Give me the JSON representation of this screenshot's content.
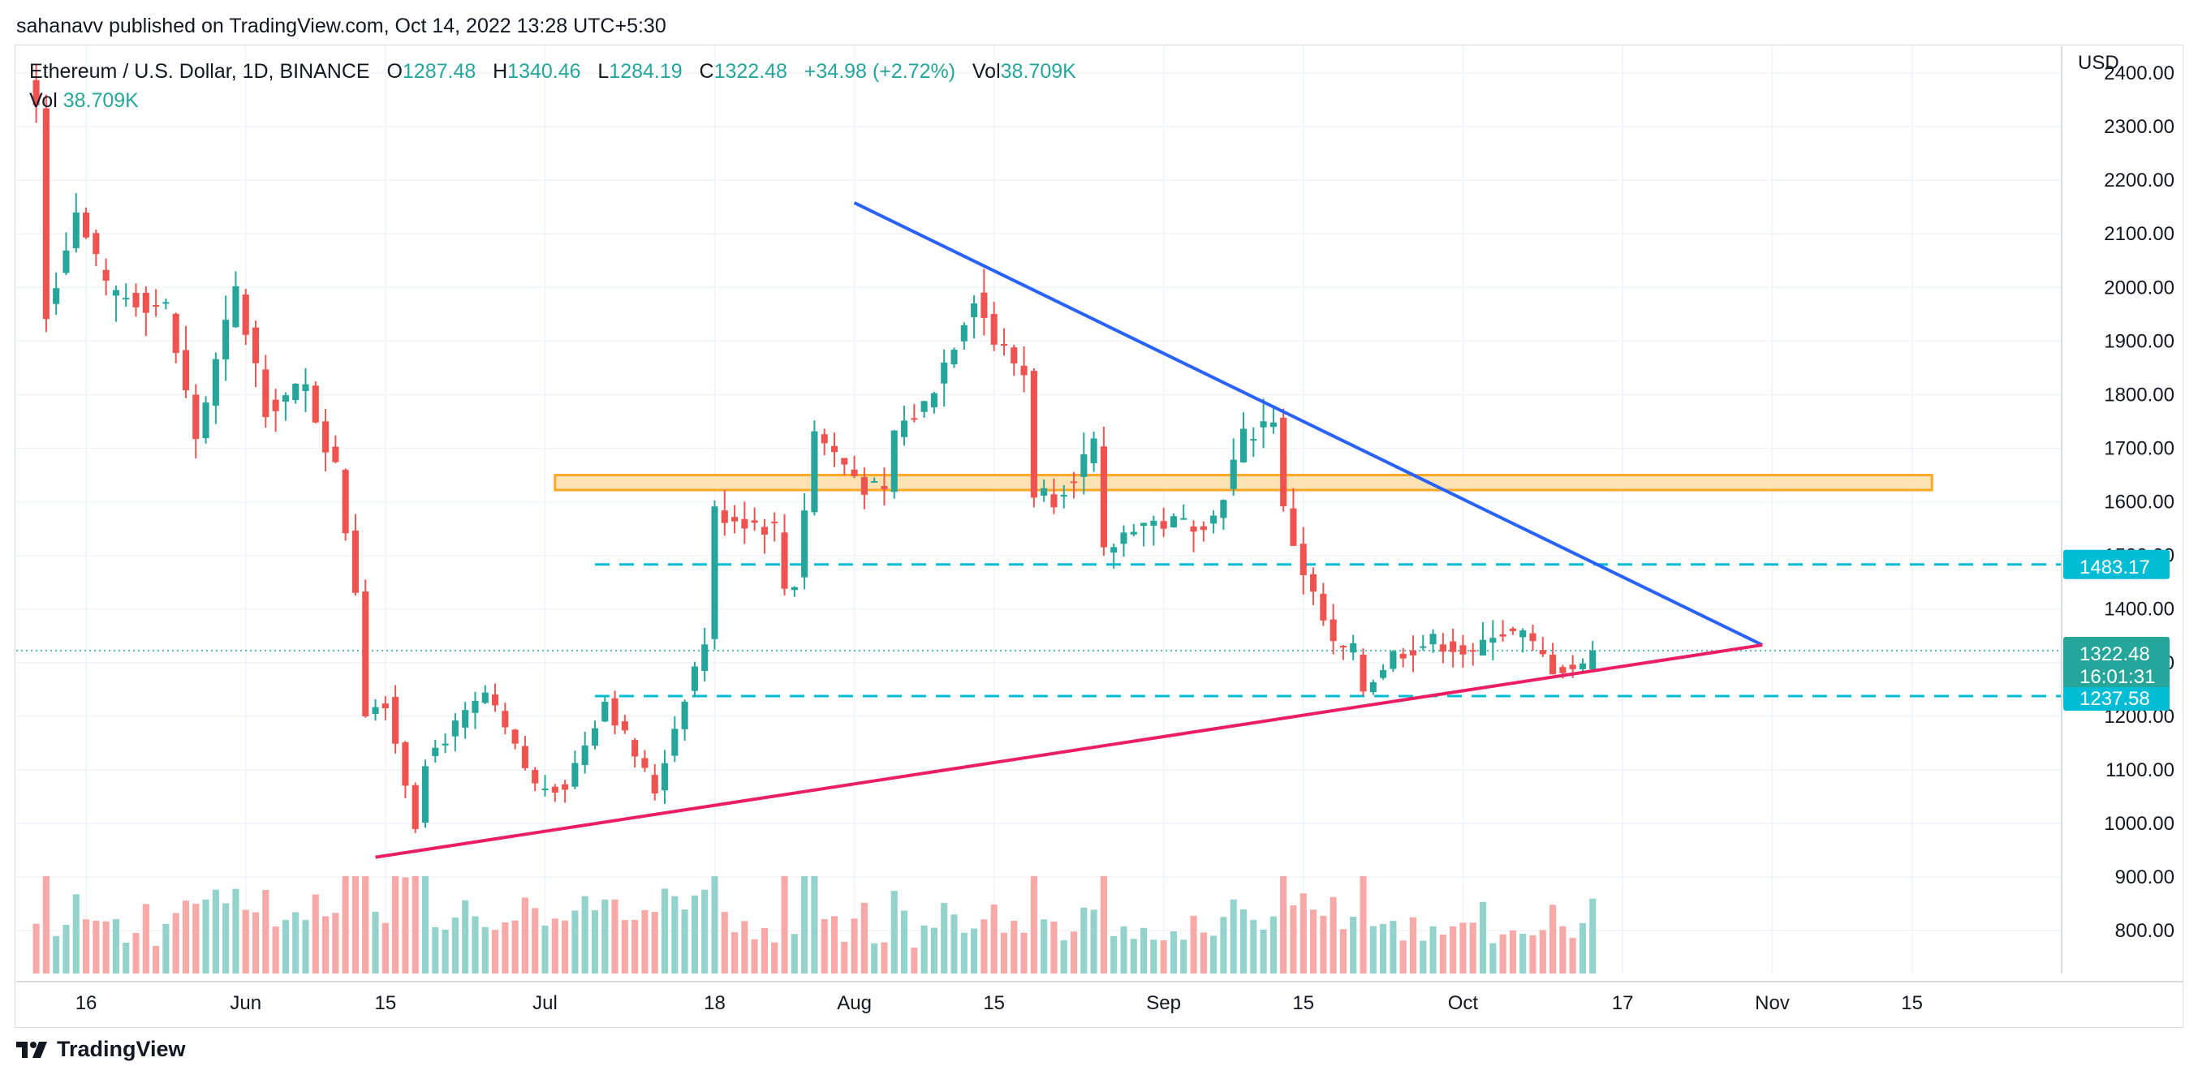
{
  "header": {
    "published_by": "sahanavv published on TradingView.com, Oct 14, 2022 13:28 UTC+5:30"
  },
  "legend": {
    "symbol": "Ethereum / U.S. Dollar, 1D, BINANCE",
    "open_label": "O",
    "open": "1287.48",
    "high_label": "H",
    "high": "1340.46",
    "low_label": "L",
    "low": "1284.19",
    "close_label": "C",
    "close": "1322.48",
    "change": "+34.98 (+2.72%)",
    "vol_label": "Vol",
    "vol": "38.709K",
    "vol2_label": "Vol",
    "vol2": "38.709K"
  },
  "footer": {
    "brand": "TradingView"
  },
  "colors": {
    "up": "#26a69a",
    "down": "#ef5350",
    "vol_up": "#93d3cc",
    "vol_down": "#f7a9a7",
    "resistance_line": "#2962ff",
    "support_line": "#e91e63",
    "zone_fill": "#fde2b3",
    "zone_border": "#ffa726",
    "level_line": "#00bcd4",
    "price_badge": "#26a69a"
  },
  "chart_data": {
    "type": "candlestick",
    "currency": "USD",
    "ylim": [
      720,
      2450
    ],
    "y_ticks": [
      "800.00",
      "900.00",
      "1000.00",
      "1100.00",
      "1200.00",
      "1300.00",
      "1400.00",
      "1500.00",
      "1600.00",
      "1700.00",
      "1800.00",
      "1900.00",
      "2000.00",
      "2100.00",
      "2200.00",
      "2300.00",
      "2400.00"
    ],
    "x_range": [
      "2022-05-09",
      "2022-11-30"
    ],
    "x_ticks": [
      {
        "date": "2022-05-16",
        "label": "16"
      },
      {
        "date": "2022-06-01",
        "label": "Jun"
      },
      {
        "date": "2022-06-15",
        "label": "15"
      },
      {
        "date": "2022-07-01",
        "label": "Jul"
      },
      {
        "date": "2022-07-18",
        "label": "18"
      },
      {
        "date": "2022-08-01",
        "label": "Aug"
      },
      {
        "date": "2022-08-15",
        "label": "15"
      },
      {
        "date": "2022-09-01",
        "label": "Sep"
      },
      {
        "date": "2022-09-15",
        "label": "15"
      },
      {
        "date": "2022-10-01",
        "label": "Oct"
      },
      {
        "date": "2022-10-17",
        "label": "17"
      },
      {
        "date": "2022-11-01",
        "label": "Nov"
      },
      {
        "date": "2022-11-15",
        "label": "15"
      }
    ],
    "anchors": [
      {
        "date": "2022-05-11",
        "close": 2340
      },
      {
        "date": "2022-05-12",
        "close": 1960
      },
      {
        "date": "2022-05-13",
        "close": 2020
      },
      {
        "date": "2022-05-15",
        "close": 2140
      },
      {
        "date": "2022-05-18",
        "close": 1990
      },
      {
        "date": "2022-05-21",
        "close": 1980
      },
      {
        "date": "2022-05-24",
        "close": 1960
      },
      {
        "date": "2022-05-27",
        "close": 1720
      },
      {
        "date": "2022-05-31",
        "close": 1990
      },
      {
        "date": "2022-06-03",
        "close": 1780
      },
      {
        "date": "2022-06-07",
        "close": 1810
      },
      {
        "date": "2022-06-10",
        "close": 1660
      },
      {
        "date": "2022-06-12",
        "close": 1440
      },
      {
        "date": "2022-06-13",
        "close": 1210
      },
      {
        "date": "2022-06-15",
        "close": 1230
      },
      {
        "date": "2022-06-18",
        "close": 1000
      },
      {
        "date": "2022-06-19",
        "close": 1120
      },
      {
        "date": "2022-06-25",
        "close": 1240
      },
      {
        "date": "2022-06-30",
        "close": 1070
      },
      {
        "date": "2022-07-03",
        "close": 1070
      },
      {
        "date": "2022-07-07",
        "close": 1230
      },
      {
        "date": "2022-07-12",
        "close": 1060
      },
      {
        "date": "2022-07-15",
        "close": 1240
      },
      {
        "date": "2022-07-17",
        "close": 1340
      },
      {
        "date": "2022-07-18",
        "close": 1580
      },
      {
        "date": "2022-07-24",
        "close": 1550
      },
      {
        "date": "2022-07-25",
        "close": 1440
      },
      {
        "date": "2022-07-26",
        "close": 1450
      },
      {
        "date": "2022-07-28",
        "close": 1730
      },
      {
        "date": "2022-08-02",
        "close": 1630
      },
      {
        "date": "2022-08-04",
        "close": 1610
      },
      {
        "date": "2022-08-05",
        "close": 1730
      },
      {
        "date": "2022-08-08",
        "close": 1780
      },
      {
        "date": "2022-08-10",
        "close": 1860
      },
      {
        "date": "2022-08-13",
        "close": 1990
      },
      {
        "date": "2022-08-15",
        "close": 1900
      },
      {
        "date": "2022-08-18",
        "close": 1840
      },
      {
        "date": "2022-08-19",
        "close": 1620
      },
      {
        "date": "2022-08-21",
        "close": 1610
      },
      {
        "date": "2022-08-25",
        "close": 1700
      },
      {
        "date": "2022-08-26",
        "close": 1500
      },
      {
        "date": "2022-08-29",
        "close": 1560
      },
      {
        "date": "2022-09-03",
        "close": 1560
      },
      {
        "date": "2022-09-06",
        "close": 1570
      },
      {
        "date": "2022-09-09",
        "close": 1720
      },
      {
        "date": "2022-09-12",
        "close": 1760
      },
      {
        "date": "2022-09-13",
        "close": 1580
      },
      {
        "date": "2022-09-15",
        "close": 1470
      },
      {
        "date": "2022-09-18",
        "close": 1330
      },
      {
        "date": "2022-09-20",
        "close": 1320
      },
      {
        "date": "2022-09-21",
        "close": 1250
      },
      {
        "date": "2022-09-24",
        "close": 1315
      },
      {
        "date": "2022-09-28",
        "close": 1340
      },
      {
        "date": "2022-09-30",
        "close": 1330
      },
      {
        "date": "2022-10-02",
        "close": 1310
      },
      {
        "date": "2022-10-04",
        "close": 1360
      },
      {
        "date": "2022-10-07",
        "close": 1350
      },
      {
        "date": "2022-10-10",
        "close": 1290
      },
      {
        "date": "2022-10-13",
        "close": 1290
      },
      {
        "date": "2022-10-14",
        "close": 1322.48
      }
    ],
    "price_levels": [
      {
        "value": 1483.17,
        "label": "1483.17"
      },
      {
        "value": 1237.58,
        "label": "1237.58"
      }
    ],
    "last_price": {
      "value": 1322.48,
      "label": "1322.48",
      "countdown": "16:01:31"
    },
    "resistance_zone": {
      "from_date": "2022-07-02",
      "to_date": "2022-11-17",
      "low": 1622,
      "high": 1650
    },
    "trendlines": [
      {
        "name": "descending",
        "from": {
          "date": "2022-08-01",
          "price": 2158
        },
        "to": {
          "date": "2022-10-31",
          "price": 1333
        }
      },
      {
        "name": "ascending",
        "from": {
          "date": "2022-06-14",
          "price": 937
        },
        "to": {
          "date": "2022-10-31",
          "price": 1333
        }
      }
    ],
    "level_start_date": "2022-07-06"
  }
}
